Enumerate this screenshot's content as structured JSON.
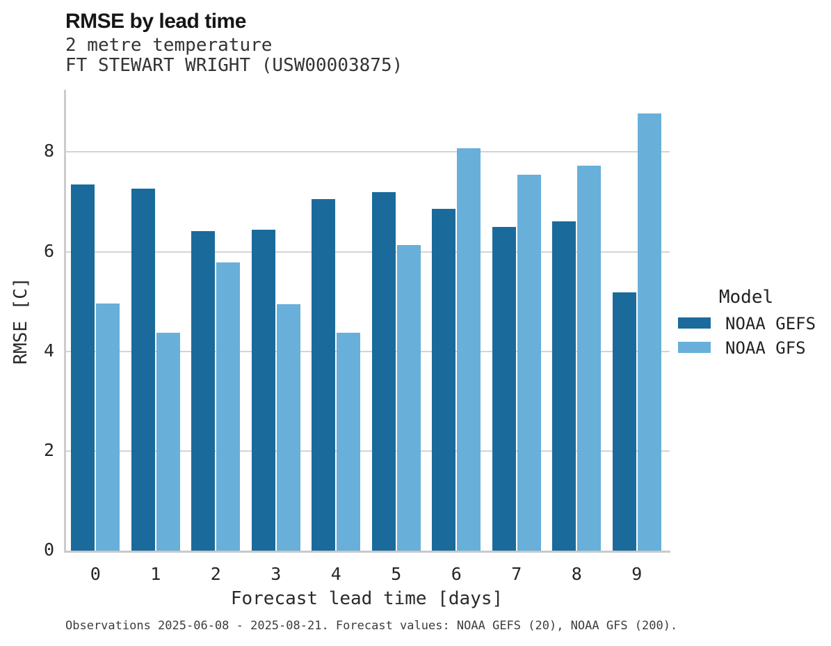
{
  "header": {
    "title": "RMSE by lead time",
    "subtitle1": "2 metre temperature",
    "subtitle2": "FT STEWART WRIGHT (USW00003875)"
  },
  "chart_data": {
    "type": "bar",
    "title": "RMSE by lead time",
    "subtitle": [
      "2 metre temperature",
      "FT STEWART WRIGHT (USW00003875)"
    ],
    "categories": [
      "0",
      "1",
      "2",
      "3",
      "4",
      "5",
      "6",
      "7",
      "8",
      "9"
    ],
    "series": [
      {
        "name": "NOAA GEFS",
        "color": "#1a6b9b",
        "values": [
          7.35,
          7.27,
          6.42,
          6.44,
          7.05,
          7.19,
          6.86,
          6.5,
          6.61,
          5.19
        ]
      },
      {
        "name": "NOAA GFS",
        "color": "#68afd9",
        "values": [
          4.96,
          4.37,
          5.78,
          4.95,
          4.37,
          6.14,
          8.07,
          7.55,
          7.73,
          8.78
        ]
      }
    ],
    "xlabel": "Forecast lead time [days]",
    "ylabel": "RMSE [C]",
    "ylim": [
      0,
      9.25
    ],
    "yticks": [
      0,
      2,
      4,
      6,
      8
    ],
    "grid": true,
    "legend_title": "Model",
    "legend_position": "right"
  },
  "legend": {
    "title": "Model",
    "entries": [
      {
        "label": "NOAA GEFS",
        "color": "#1a6b9b"
      },
      {
        "label": "NOAA GFS",
        "color": "#68afd9"
      }
    ]
  },
  "footer": {
    "note": "Observations 2025-06-08 - 2025-08-21. Forecast values: NOAA GEFS (20), NOAA GFS (200)."
  },
  "colors": {
    "series_dark": "#1a6b9b",
    "series_light": "#68afd9",
    "gridline": "#d4d4d4",
    "axis": "#c9c9c9",
    "text": "#262626"
  }
}
